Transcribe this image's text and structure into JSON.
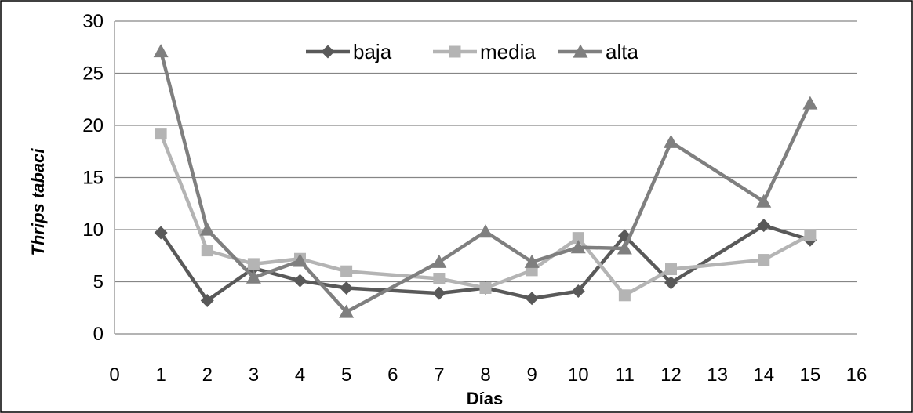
{
  "chart_data": {
    "type": "line",
    "xlabel": "Días",
    "ylabel": "Thrips tabaci",
    "xlim": [
      0,
      16
    ],
    "ylim": [
      0,
      30
    ],
    "x_ticks": [
      "0",
      "1",
      "2",
      "3",
      "4",
      "5",
      "6",
      "7",
      "8",
      "9",
      "10",
      "11",
      "12",
      "13",
      "14",
      "15",
      "16"
    ],
    "y_ticks": [
      "0",
      "5",
      "10",
      "15",
      "20",
      "25",
      "30"
    ],
    "grid": true,
    "legend_position": "top-center",
    "series": [
      {
        "name": "baja",
        "marker": "diamond",
        "color": "#595959",
        "points": [
          [
            1,
            9.7
          ],
          [
            2,
            3.2
          ],
          [
            3,
            6.3
          ],
          [
            4,
            5.1
          ],
          [
            5,
            4.4
          ],
          [
            7,
            3.9
          ],
          [
            8,
            4.4
          ],
          [
            9,
            3.4
          ],
          [
            10,
            4.1
          ],
          [
            11,
            9.4
          ],
          [
            12,
            4.9
          ],
          [
            14,
            10.4
          ],
          [
            15,
            9.0
          ]
        ]
      },
      {
        "name": "media",
        "marker": "square",
        "color": "#b4b4b4",
        "points": [
          [
            1,
            19.2
          ],
          [
            2,
            8.0
          ],
          [
            3,
            6.7
          ],
          [
            4,
            7.2
          ],
          [
            5,
            6.0
          ],
          [
            7,
            5.3
          ],
          [
            8,
            4.4
          ],
          [
            9,
            6.1
          ],
          [
            10,
            9.2
          ],
          [
            11,
            3.7
          ],
          [
            12,
            6.2
          ],
          [
            14,
            7.1
          ],
          [
            15,
            9.5
          ]
        ]
      },
      {
        "name": "alta",
        "marker": "triangle",
        "color": "#7f7f7f",
        "points": [
          [
            1,
            27.1
          ],
          [
            2,
            10.0
          ],
          [
            3,
            5.4
          ],
          [
            4,
            7.0
          ],
          [
            5,
            2.1
          ],
          [
            7,
            6.9
          ],
          [
            8,
            9.8
          ],
          [
            9,
            6.9
          ],
          [
            10,
            8.3
          ],
          [
            11,
            8.2
          ],
          [
            12,
            18.4
          ],
          [
            14,
            12.7
          ],
          [
            15,
            22.1
          ]
        ]
      }
    ]
  }
}
